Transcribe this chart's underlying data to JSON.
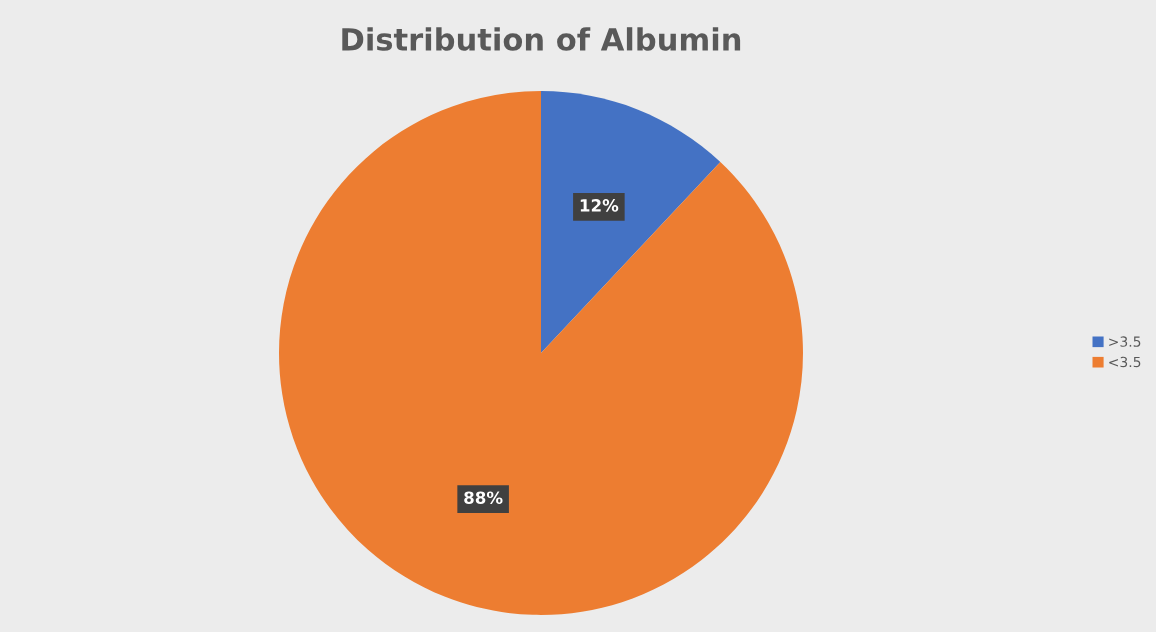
{
  "chart_data": {
    "type": "pie",
    "title": "Distribution of Albumin",
    "categories": [
      ">3.5",
      "<3.5"
    ],
    "values": [
      12,
      88
    ],
    "colors": [
      "#4472c4",
      "#ed7d31"
    ],
    "value_labels": [
      "12%",
      "88%"
    ],
    "legend": "right"
  }
}
